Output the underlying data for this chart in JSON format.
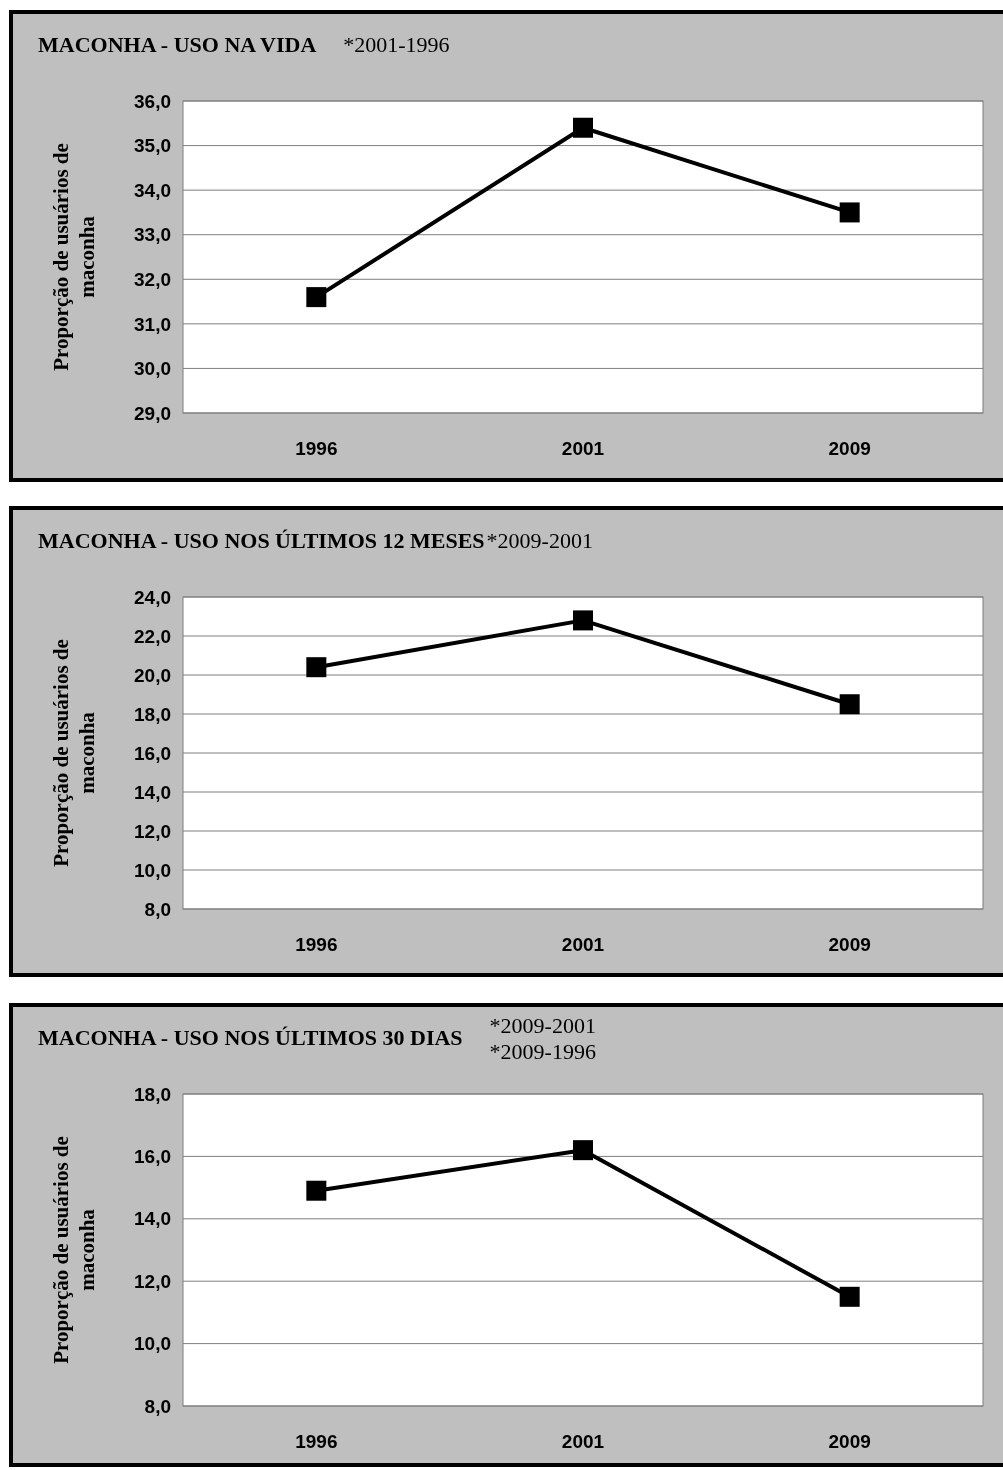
{
  "chart_data": [
    {
      "type": "line",
      "title": "MACONHA - USO NA VIDA",
      "annotations": [
        "*2001-1996"
      ],
      "ylabel": "Proporção de usuários de maconha",
      "categories": [
        "1996",
        "2001",
        "2009"
      ],
      "series": [
        {
          "color": "#000000",
          "values": [
            31.6,
            35.4,
            33.5
          ]
        }
      ],
      "ylim": [
        29,
        36
      ],
      "yticks": [
        {
          "value": 29,
          "label": "29,0"
        },
        {
          "value": 30,
          "label": "30,0"
        },
        {
          "value": 31,
          "label": "31,0"
        },
        {
          "value": 32,
          "label": "32,0"
        },
        {
          "value": 33,
          "label": "33,0"
        },
        {
          "value": 34,
          "label": "34,0"
        },
        {
          "value": 35,
          "label": "35,0"
        },
        {
          "value": 36,
          "label": "36,0"
        }
      ],
      "grid": "y",
      "marker": "square",
      "line_style": "solid"
    },
    {
      "type": "line",
      "title": "MACONHA - USO NOS ÚLTIMOS 12 MESES",
      "annotations": [
        "*2009-2001"
      ],
      "ylabel": "Proporção de usuários de maconha",
      "categories": [
        "1996",
        "2001",
        "2009"
      ],
      "series": [
        {
          "color": "#000000",
          "values": [
            20.4,
            22.8,
            18.5
          ]
        }
      ],
      "ylim": [
        8,
        24
      ],
      "yticks": [
        {
          "value": 8,
          "label": "8,0"
        },
        {
          "value": 10,
          "label": "10,0"
        },
        {
          "value": 12,
          "label": "12,0"
        },
        {
          "value": 14,
          "label": "14,0"
        },
        {
          "value": 16,
          "label": "16,0"
        },
        {
          "value": 18,
          "label": "18,0"
        },
        {
          "value": 20,
          "label": "20,0"
        },
        {
          "value": 22,
          "label": "22,0"
        },
        {
          "value": 24,
          "label": "24,0"
        }
      ],
      "grid": "y",
      "marker": "square",
      "line_style": "solid"
    },
    {
      "type": "line",
      "title": "MACONHA - USO NOS ÚLTIMOS 30 DIAS",
      "annotations": [
        "*2009-2001",
        "*2009-1996"
      ],
      "ylabel": "Proporção de usuários de maconha",
      "categories": [
        "1996",
        "2001",
        "2009"
      ],
      "series": [
        {
          "color": "#000000",
          "values": [
            14.9,
            16.2,
            11.5
          ]
        }
      ],
      "ylim": [
        8,
        18
      ],
      "yticks": [
        {
          "value": 8,
          "label": "8,0"
        },
        {
          "value": 10,
          "label": "10,0"
        },
        {
          "value": 12,
          "label": "12,0"
        },
        {
          "value": 14,
          "label": "14,0"
        },
        {
          "value": 16,
          "label": "16,0"
        },
        {
          "value": 18,
          "label": "18,0"
        }
      ],
      "grid": "y",
      "marker": "square",
      "line_style": "solid"
    }
  ]
}
